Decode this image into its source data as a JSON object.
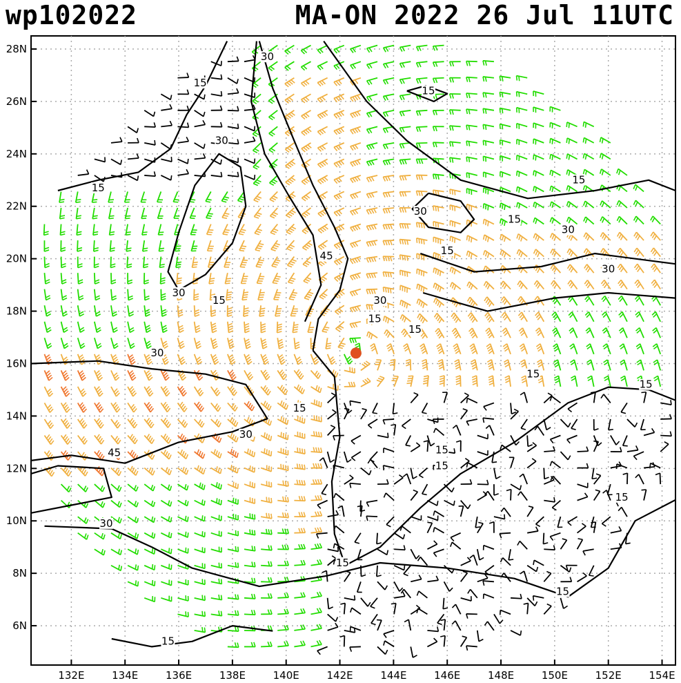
{
  "header": {
    "storm_id": "wp102022",
    "storm_info": "MA-ON 2022 26 Jul 11UTC"
  },
  "map": {
    "lat_range": [
      4.5,
      28.5
    ],
    "lon_range": [
      130.5,
      154.5
    ],
    "lat_labels": [
      "6N",
      "8N",
      "10N",
      "12N",
      "14N",
      "16N",
      "18N",
      "20N",
      "22N",
      "24N",
      "26N",
      "28N"
    ],
    "lat_values": [
      6,
      8,
      10,
      12,
      14,
      16,
      18,
      20,
      22,
      24,
      26,
      28
    ],
    "lon_labels": [
      "132E",
      "134E",
      "136E",
      "138E",
      "140E",
      "142E",
      "144E",
      "146E",
      "148E",
      "150E",
      "152E",
      "154E"
    ],
    "lon_values": [
      132,
      134,
      136,
      138,
      140,
      142,
      144,
      146,
      148,
      150,
      152,
      154
    ],
    "gridlines": true,
    "storm_center": {
      "lon": 142.6,
      "lat": 16.4
    },
    "colors": {
      "low_wind_barb": "#000000",
      "mid_wind_barb": "#22dd00",
      "high_wind_barb": "#f0b040",
      "very_high_wind_barb": "#f07830",
      "storm_marker": "#e05020",
      "contour": "#000000",
      "grid": "#aaaaaa"
    },
    "contour_labels": [
      {
        "text": "30",
        "lon": 139.3,
        "lat": 27.6
      },
      {
        "text": "15",
        "lon": 136.8,
        "lat": 26.6
      },
      {
        "text": "15",
        "lon": 145.3,
        "lat": 26.3
      },
      {
        "text": "30",
        "lon": 137.6,
        "lat": 24.4
      },
      {
        "text": "15",
        "lon": 133.0,
        "lat": 22.6
      },
      {
        "text": "15",
        "lon": 150.9,
        "lat": 22.9
      },
      {
        "text": "30",
        "lon": 145.0,
        "lat": 21.7
      },
      {
        "text": "15",
        "lon": 148.5,
        "lat": 21.4
      },
      {
        "text": "30",
        "lon": 150.5,
        "lat": 21.0
      },
      {
        "text": "45",
        "lon": 141.5,
        "lat": 20.0
      },
      {
        "text": "15",
        "lon": 146.0,
        "lat": 20.2
      },
      {
        "text": "30",
        "lon": 152.0,
        "lat": 19.5
      },
      {
        "text": "30",
        "lon": 136.0,
        "lat": 18.6
      },
      {
        "text": "15",
        "lon": 137.5,
        "lat": 18.3
      },
      {
        "text": "30",
        "lon": 143.5,
        "lat": 18.3
      },
      {
        "text": "15",
        "lon": 143.3,
        "lat": 17.6
      },
      {
        "text": "15",
        "lon": 144.8,
        "lat": 17.2
      },
      {
        "text": "30",
        "lon": 135.2,
        "lat": 16.3
      },
      {
        "text": "15",
        "lon": 149.2,
        "lat": 15.5
      },
      {
        "text": "15",
        "lon": 153.4,
        "lat": 15.1
      },
      {
        "text": "15",
        "lon": 140.5,
        "lat": 14.2
      },
      {
        "text": "30",
        "lon": 138.5,
        "lat": 13.2
      },
      {
        "text": "45",
        "lon": 133.6,
        "lat": 12.5
      },
      {
        "text": "15",
        "lon": 145.8,
        "lat": 12.6
      },
      {
        "text": "15",
        "lon": 145.8,
        "lat": 12.0
      },
      {
        "text": "15",
        "lon": 152.5,
        "lat": 10.8
      },
      {
        "text": "30",
        "lon": 133.3,
        "lat": 9.8
      },
      {
        "text": "15",
        "lon": 142.1,
        "lat": 8.3
      },
      {
        "text": "15",
        "lon": 150.3,
        "lat": 7.2
      },
      {
        "text": "15",
        "lon": 135.6,
        "lat": 5.3
      }
    ]
  }
}
